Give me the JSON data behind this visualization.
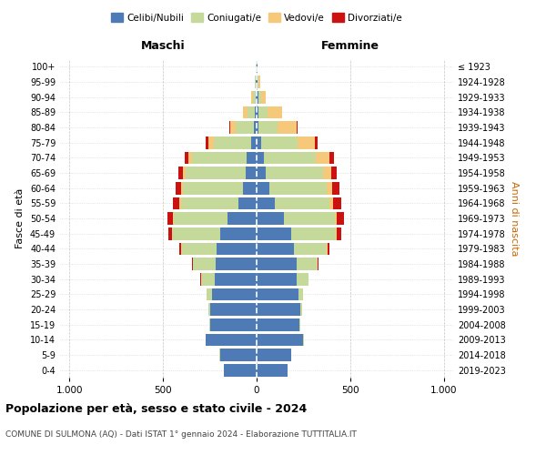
{
  "age_groups": [
    "0-4",
    "5-9",
    "10-14",
    "15-19",
    "20-24",
    "25-29",
    "30-34",
    "35-39",
    "40-44",
    "45-49",
    "50-54",
    "55-59",
    "60-64",
    "65-69",
    "70-74",
    "75-79",
    "80-84",
    "85-89",
    "90-94",
    "95-99",
    "100+"
  ],
  "birth_years": [
    "2019-2023",
    "2014-2018",
    "2009-2013",
    "2004-2008",
    "1999-2003",
    "1994-1998",
    "1989-1993",
    "1984-1988",
    "1979-1983",
    "1974-1978",
    "1969-1973",
    "1964-1968",
    "1959-1963",
    "1954-1958",
    "1949-1953",
    "1944-1948",
    "1939-1943",
    "1934-1938",
    "1929-1933",
    "1924-1928",
    "≤ 1923"
  ],
  "males": {
    "celibi": [
      175,
      195,
      270,
      250,
      250,
      240,
      225,
      220,
      215,
      195,
      155,
      95,
      75,
      60,
      55,
      30,
      15,
      8,
      5,
      3,
      2
    ],
    "coniugati": [
      1,
      2,
      3,
      5,
      10,
      25,
      70,
      120,
      185,
      255,
      285,
      310,
      320,
      320,
      290,
      200,
      95,
      40,
      15,
      5,
      2
    ],
    "vedovi": [
      0,
      0,
      0,
      0,
      0,
      0,
      1,
      1,
      2,
      3,
      5,
      8,
      10,
      15,
      20,
      30,
      30,
      25,
      10,
      3,
      1
    ],
    "divorziati": [
      0,
      0,
      0,
      0,
      0,
      1,
      3,
      5,
      10,
      20,
      30,
      35,
      30,
      25,
      20,
      10,
      5,
      2,
      1,
      0,
      0
    ]
  },
  "females": {
    "nubili": [
      165,
      185,
      250,
      230,
      235,
      225,
      215,
      215,
      200,
      185,
      145,
      95,
      70,
      50,
      38,
      22,
      12,
      10,
      8,
      5,
      3
    ],
    "coniugate": [
      1,
      1,
      2,
      3,
      8,
      22,
      60,
      110,
      175,
      240,
      275,
      295,
      305,
      305,
      280,
      195,
      100,
      50,
      15,
      5,
      2
    ],
    "vedove": [
      0,
      0,
      0,
      0,
      0,
      0,
      1,
      2,
      3,
      5,
      10,
      20,
      30,
      45,
      70,
      95,
      100,
      75,
      25,
      10,
      2
    ],
    "divorziate": [
      0,
      0,
      0,
      0,
      0,
      1,
      2,
      5,
      10,
      20,
      35,
      40,
      35,
      30,
      25,
      15,
      8,
      3,
      1,
      0,
      0
    ]
  },
  "colors": {
    "celibi": "#4e7ab5",
    "coniugati": "#c5d99a",
    "vedovi": "#f5c87a",
    "divorziati": "#cc1111"
  },
  "legend_labels": [
    "Celibi/Nubili",
    "Coniugati/e",
    "Vedovi/e",
    "Divorziati/e"
  ],
  "xlabel_left": "Maschi",
  "xlabel_right": "Femmine",
  "ylabel_left": "Fasce di età",
  "ylabel_right": "Anni di nascita",
  "title": "Popolazione per età, sesso e stato civile - 2024",
  "subtitle": "COMUNE DI SULMONA (AQ) - Dati ISTAT 1° gennaio 2024 - Elaborazione TUTTITALIA.IT",
  "xlim": 1050,
  "xticks": [
    -1000,
    -500,
    0,
    500,
    1000
  ],
  "xticklabels": [
    "1.000",
    "500",
    "0",
    "500",
    "1.000"
  ],
  "bg_color": "#ffffff",
  "grid_color": "#cccccc"
}
